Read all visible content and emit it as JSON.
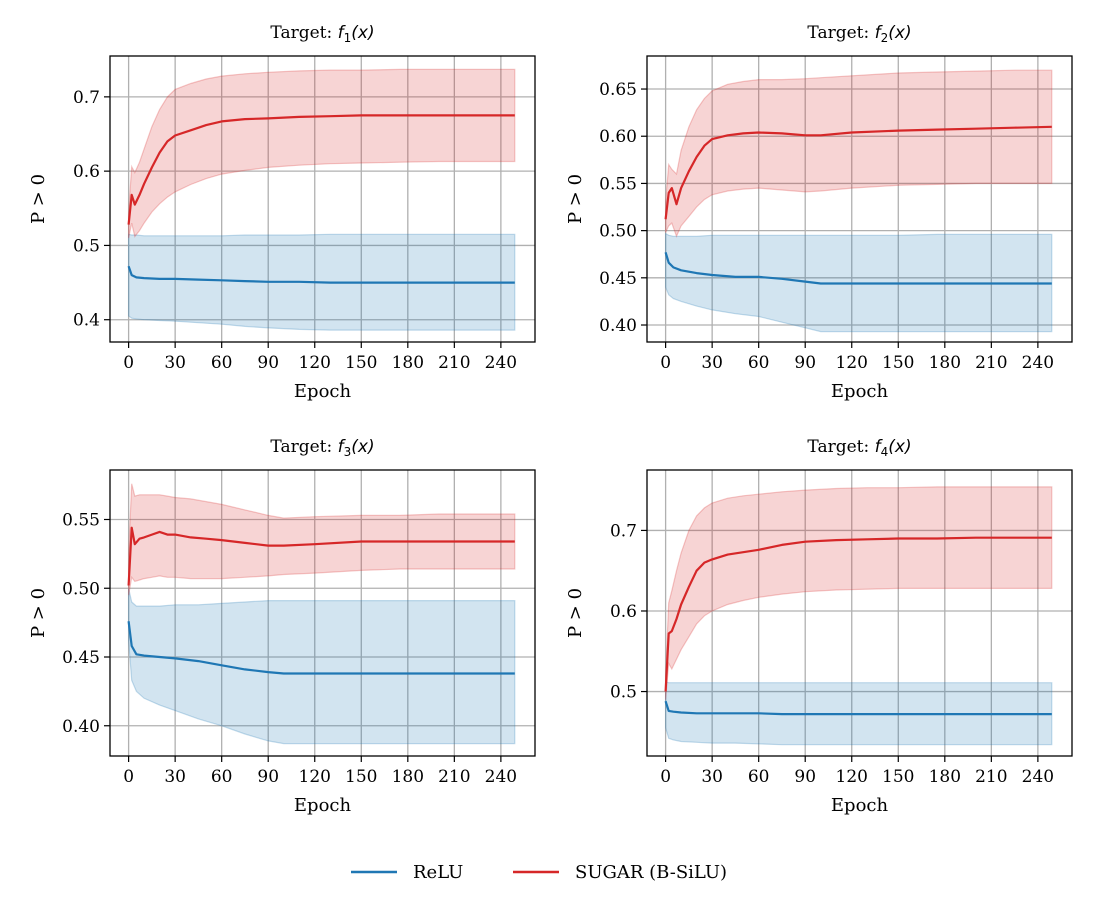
{
  "figure": {
    "legend": [
      {
        "name": "ReLU",
        "color": "#1f77b4"
      },
      {
        "name": "SUGAR (B-SiLU)",
        "color": "#d62728"
      }
    ]
  },
  "chart_data": [
    {
      "type": "line",
      "title_prefix": "Target: ",
      "title_func": "f",
      "title_sub": "1",
      "title_arg": "(x)",
      "xlabel": "Epoch",
      "ylabel": "P > 0",
      "xlim": [
        -12,
        262
      ],
      "ylim": [
        0.37,
        0.755
      ],
      "xticks": [
        0,
        30,
        60,
        90,
        120,
        150,
        180,
        210,
        240
      ],
      "yticks": [
        0.4,
        0.5,
        0.6,
        0.7
      ],
      "ytick_labels": [
        "0.4",
        "0.5",
        "0.6",
        "0.7"
      ],
      "series": [
        {
          "name": "ReLU",
          "color": "#1f77b4",
          "x": [
            0,
            2,
            5,
            10,
            20,
            30,
            45,
            60,
            75,
            90,
            110,
            130,
            150,
            175,
            200,
            225,
            249
          ],
          "y": [
            0.472,
            0.46,
            0.457,
            0.456,
            0.455,
            0.455,
            0.454,
            0.453,
            0.452,
            0.451,
            0.451,
            0.45,
            0.45,
            0.45,
            0.45,
            0.45,
            0.45
          ],
          "lower": [
            0.405,
            0.402,
            0.401,
            0.4,
            0.399,
            0.398,
            0.396,
            0.394,
            0.391,
            0.389,
            0.387,
            0.386,
            0.386,
            0.386,
            0.386,
            0.386,
            0.386
          ],
          "upper": [
            0.515,
            0.514,
            0.514,
            0.513,
            0.513,
            0.513,
            0.513,
            0.513,
            0.514,
            0.514,
            0.514,
            0.515,
            0.515,
            0.515,
            0.515,
            0.515,
            0.515
          ]
        },
        {
          "name": "SUGAR (B-SiLU)",
          "color": "#d62728",
          "x": [
            0,
            2,
            4,
            7,
            10,
            15,
            20,
            25,
            30,
            40,
            50,
            60,
            75,
            90,
            110,
            130,
            150,
            175,
            200,
            225,
            249
          ],
          "y": [
            0.528,
            0.568,
            0.555,
            0.568,
            0.583,
            0.605,
            0.625,
            0.64,
            0.648,
            0.655,
            0.662,
            0.667,
            0.67,
            0.671,
            0.673,
            0.674,
            0.675,
            0.675,
            0.675,
            0.675,
            0.675
          ],
          "lower": [
            0.51,
            0.53,
            0.512,
            0.52,
            0.53,
            0.545,
            0.556,
            0.565,
            0.572,
            0.582,
            0.59,
            0.596,
            0.601,
            0.605,
            0.608,
            0.61,
            0.611,
            0.612,
            0.613,
            0.613,
            0.613
          ],
          "upper": [
            0.545,
            0.606,
            0.598,
            0.612,
            0.63,
            0.66,
            0.683,
            0.7,
            0.71,
            0.718,
            0.724,
            0.728,
            0.731,
            0.733,
            0.735,
            0.736,
            0.736,
            0.737,
            0.737,
            0.737,
            0.737
          ]
        }
      ]
    },
    {
      "type": "line",
      "title_prefix": "Target: ",
      "title_func": "f",
      "title_sub": "2",
      "title_arg": "(x)",
      "xlabel": "Epoch",
      "ylabel": "P > 0",
      "xlim": [
        -12,
        262
      ],
      "ylim": [
        0.382,
        0.685
      ],
      "xticks": [
        0,
        30,
        60,
        90,
        120,
        150,
        180,
        210,
        240
      ],
      "yticks": [
        0.4,
        0.45,
        0.5,
        0.55,
        0.6,
        0.65
      ],
      "ytick_labels": [
        "0.40",
        "0.45",
        "0.50",
        "0.55",
        "0.60",
        "0.65"
      ],
      "series": [
        {
          "name": "ReLU",
          "color": "#1f77b4",
          "x": [
            0,
            2,
            5,
            10,
            20,
            30,
            45,
            60,
            75,
            90,
            100,
            120,
            150,
            175,
            200,
            225,
            249
          ],
          "y": [
            0.477,
            0.466,
            0.461,
            0.458,
            0.455,
            0.453,
            0.451,
            0.451,
            0.449,
            0.446,
            0.444,
            0.444,
            0.444,
            0.444,
            0.444,
            0.444,
            0.444
          ],
          "lower": [
            0.44,
            0.432,
            0.428,
            0.425,
            0.42,
            0.416,
            0.412,
            0.409,
            0.403,
            0.397,
            0.393,
            0.393,
            0.393,
            0.393,
            0.393,
            0.393,
            0.393
          ],
          "upper": [
            0.497,
            0.495,
            0.494,
            0.494,
            0.494,
            0.495,
            0.495,
            0.495,
            0.495,
            0.495,
            0.495,
            0.495,
            0.495,
            0.496,
            0.496,
            0.496,
            0.496
          ]
        },
        {
          "name": "SUGAR (B-SiLU)",
          "color": "#d62728",
          "x": [
            0,
            2,
            4,
            7,
            10,
            15,
            20,
            25,
            30,
            40,
            50,
            60,
            75,
            90,
            100,
            120,
            150,
            175,
            200,
            225,
            249
          ],
          "y": [
            0.512,
            0.54,
            0.545,
            0.528,
            0.545,
            0.563,
            0.578,
            0.59,
            0.597,
            0.601,
            0.603,
            0.604,
            0.603,
            0.601,
            0.601,
            0.604,
            0.606,
            0.607,
            0.608,
            0.609,
            0.61
          ],
          "lower": [
            0.498,
            0.505,
            0.508,
            0.494,
            0.505,
            0.515,
            0.525,
            0.533,
            0.538,
            0.542,
            0.544,
            0.545,
            0.543,
            0.541,
            0.542,
            0.545,
            0.548,
            0.549,
            0.55,
            0.55,
            0.55
          ],
          "upper": [
            0.53,
            0.57,
            0.565,
            0.56,
            0.585,
            0.61,
            0.628,
            0.64,
            0.648,
            0.655,
            0.658,
            0.66,
            0.66,
            0.661,
            0.662,
            0.664,
            0.667,
            0.668,
            0.669,
            0.67,
            0.67
          ]
        }
      ]
    },
    {
      "type": "line",
      "title_prefix": "Target: ",
      "title_func": "f",
      "title_sub": "3",
      "title_arg": "(x)",
      "xlabel": "Epoch",
      "ylabel": "P > 0",
      "xlim": [
        -12,
        262
      ],
      "ylim": [
        0.378,
        0.586
      ],
      "xticks": [
        0,
        30,
        60,
        90,
        120,
        150,
        180,
        210,
        240
      ],
      "yticks": [
        0.4,
        0.45,
        0.5,
        0.55
      ],
      "ytick_labels": [
        "0.40",
        "0.45",
        "0.50",
        "0.55"
      ],
      "series": [
        {
          "name": "ReLU",
          "color": "#1f77b4",
          "x": [
            0,
            2,
            5,
            10,
            20,
            30,
            45,
            60,
            75,
            90,
            100,
            120,
            150,
            175,
            200,
            225,
            249
          ],
          "y": [
            0.476,
            0.458,
            0.452,
            0.451,
            0.45,
            0.449,
            0.447,
            0.444,
            0.441,
            0.439,
            0.438,
            0.438,
            0.438,
            0.438,
            0.438,
            0.438,
            0.438
          ],
          "lower": [
            0.462,
            0.433,
            0.425,
            0.42,
            0.415,
            0.411,
            0.405,
            0.4,
            0.394,
            0.389,
            0.387,
            0.387,
            0.387,
            0.387,
            0.387,
            0.387,
            0.387
          ],
          "upper": [
            0.5,
            0.49,
            0.487,
            0.487,
            0.487,
            0.488,
            0.488,
            0.489,
            0.49,
            0.491,
            0.491,
            0.491,
            0.491,
            0.491,
            0.491,
            0.491,
            0.491
          ]
        },
        {
          "name": "SUGAR (B-SiLU)",
          "color": "#d62728",
          "x": [
            0,
            2,
            4,
            7,
            10,
            15,
            20,
            25,
            30,
            40,
            50,
            60,
            75,
            90,
            100,
            120,
            150,
            175,
            200,
            225,
            249
          ],
          "y": [
            0.502,
            0.544,
            0.532,
            0.536,
            0.537,
            0.539,
            0.541,
            0.539,
            0.539,
            0.537,
            0.536,
            0.535,
            0.533,
            0.531,
            0.531,
            0.532,
            0.534,
            0.534,
            0.534,
            0.534,
            0.534
          ],
          "lower": [
            0.495,
            0.508,
            0.505,
            0.506,
            0.507,
            0.508,
            0.509,
            0.508,
            0.508,
            0.507,
            0.507,
            0.507,
            0.508,
            0.509,
            0.51,
            0.511,
            0.513,
            0.514,
            0.514,
            0.514,
            0.514
          ],
          "upper": [
            0.525,
            0.576,
            0.567,
            0.568,
            0.568,
            0.568,
            0.568,
            0.567,
            0.566,
            0.565,
            0.563,
            0.561,
            0.557,
            0.553,
            0.551,
            0.552,
            0.553,
            0.553,
            0.554,
            0.554,
            0.554
          ]
        }
      ]
    },
    {
      "type": "line",
      "title_prefix": "Target: ",
      "title_func": "f",
      "title_sub": "4",
      "title_arg": "(x)",
      "xlabel": "Epoch",
      "ylabel": "P > 0",
      "xlim": [
        -12,
        262
      ],
      "ylim": [
        0.42,
        0.775
      ],
      "xticks": [
        0,
        30,
        60,
        90,
        120,
        150,
        180,
        210,
        240
      ],
      "yticks": [
        0.5,
        0.6,
        0.7
      ],
      "ytick_labels": [
        "0.5",
        "0.6",
        "0.7"
      ],
      "series": [
        {
          "name": "ReLU",
          "color": "#1f77b4",
          "x": [
            0,
            2,
            5,
            10,
            20,
            30,
            45,
            60,
            75,
            90,
            110,
            130,
            150,
            175,
            200,
            225,
            249
          ],
          "y": [
            0.488,
            0.476,
            0.475,
            0.474,
            0.473,
            0.473,
            0.473,
            0.473,
            0.472,
            0.472,
            0.472,
            0.472,
            0.472,
            0.472,
            0.472,
            0.472,
            0.472
          ],
          "lower": [
            0.455,
            0.442,
            0.44,
            0.438,
            0.437,
            0.436,
            0.436,
            0.435,
            0.434,
            0.434,
            0.434,
            0.434,
            0.434,
            0.434,
            0.434,
            0.434,
            0.434
          ],
          "upper": [
            0.512,
            0.511,
            0.511,
            0.511,
            0.511,
            0.511,
            0.511,
            0.511,
            0.511,
            0.511,
            0.511,
            0.511,
            0.511,
            0.511,
            0.511,
            0.511,
            0.511
          ]
        },
        {
          "name": "SUGAR (B-SiLU)",
          "color": "#d62728",
          "x": [
            0,
            2,
            4,
            7,
            10,
            15,
            20,
            25,
            30,
            40,
            50,
            60,
            75,
            90,
            110,
            130,
            150,
            175,
            200,
            225,
            249
          ],
          "y": [
            0.5,
            0.572,
            0.575,
            0.59,
            0.608,
            0.63,
            0.65,
            0.66,
            0.664,
            0.67,
            0.673,
            0.676,
            0.682,
            0.686,
            0.688,
            0.689,
            0.69,
            0.69,
            0.691,
            0.691,
            0.691
          ],
          "lower": [
            0.49,
            0.535,
            0.528,
            0.54,
            0.552,
            0.568,
            0.584,
            0.594,
            0.6,
            0.608,
            0.613,
            0.617,
            0.621,
            0.624,
            0.626,
            0.627,
            0.628,
            0.628,
            0.628,
            0.628,
            0.628
          ],
          "upper": [
            0.52,
            0.61,
            0.625,
            0.65,
            0.672,
            0.7,
            0.718,
            0.728,
            0.734,
            0.74,
            0.743,
            0.745,
            0.748,
            0.75,
            0.752,
            0.753,
            0.753,
            0.754,
            0.754,
            0.754,
            0.754
          ]
        }
      ]
    }
  ]
}
